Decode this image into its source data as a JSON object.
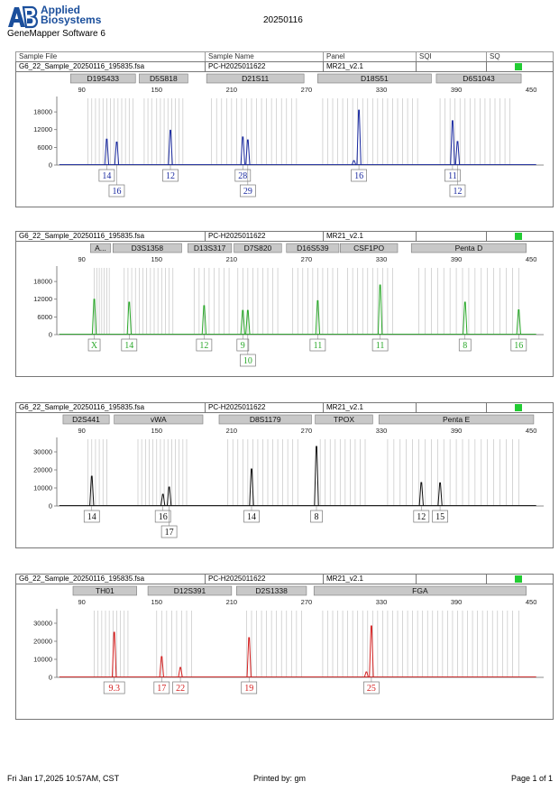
{
  "header": {
    "logo_text_line1": "Applied",
    "logo_text_line2": "Biosystems",
    "software": "GeneMapper Software 6",
    "date": "20250116",
    "brand_color": "#1b4f9c"
  },
  "columns": {
    "sample_file": "Sample File",
    "sample_name": "Sample Name",
    "panel": "Panel",
    "sqi": "SQI",
    "sq": "SQ"
  },
  "x_ticks": [
    90,
    150,
    210,
    270,
    330,
    390,
    450
  ],
  "panels": [
    {
      "sample_file": "G6_22_Sample_20250116_195835.fsa",
      "sample_name": "PC-H2025011622",
      "panel": "MR21_v2.1",
      "color": "#1a2aa0",
      "chart_data": {
        "type": "line",
        "y_ticks": [
          6000,
          12000,
          18000
        ],
        "ymax": 22000,
        "markers": [
          {
            "name": "D19S433",
            "start": 81,
            "end": 133
          },
          {
            "name": "D5S818",
            "start": 136,
            "end": 175
          },
          {
            "name": "D21S11",
            "start": 190,
            "end": 268
          },
          {
            "name": "D18S51",
            "start": 279,
            "end": 370
          },
          {
            "name": "D6S1043",
            "start": 374,
            "end": 442
          }
        ],
        "bins": [
          95,
          98,
          101,
          104,
          107,
          110,
          113,
          116,
          119,
          122,
          125,
          128,
          131,
          140,
          143,
          146,
          150,
          153,
          156,
          159,
          162,
          165,
          168,
          171,
          194,
          198,
          202,
          206,
          210,
          214,
          218,
          222,
          226,
          230,
          234,
          238,
          242,
          246,
          250,
          254,
          258,
          262,
          283,
          287,
          291,
          295,
          299,
          303,
          307,
          311,
          315,
          319,
          323,
          327,
          331,
          335,
          339,
          343,
          347,
          351,
          355,
          359,
          377,
          381,
          385,
          389,
          393,
          397,
          401,
          405,
          409,
          413,
          417,
          421,
          425,
          429,
          433
        ],
        "peaks": [
          {
            "x": 110,
            "height": 8800
          },
          {
            "x": 118,
            "height": 7800
          },
          {
            "x": 161,
            "height": 11800
          },
          {
            "x": 219,
            "height": 9500
          },
          {
            "x": 223,
            "height": 8500
          },
          {
            "x": 308,
            "height": 1500
          },
          {
            "x": 312,
            "height": 18600
          },
          {
            "x": 387,
            "height": 15000
          },
          {
            "x": 391,
            "height": 8000
          }
        ],
        "alleles": [
          {
            "label": "14",
            "x": 110,
            "row": 0
          },
          {
            "label": "16",
            "x": 118,
            "row": 1
          },
          {
            "label": "12",
            "x": 161,
            "row": 0
          },
          {
            "label": "28",
            "x": 219,
            "row": 0
          },
          {
            "label": "29",
            "x": 223,
            "row": 1
          },
          {
            "label": "16",
            "x": 312,
            "row": 0
          },
          {
            "label": "11",
            "x": 387,
            "row": 0
          },
          {
            "label": "12",
            "x": 391,
            "row": 1
          }
        ]
      }
    },
    {
      "sample_file": "G6_22_Sample_20250116_195835.fsa",
      "sample_name": "PC-H2025011622",
      "panel": "MR21_v2.1",
      "color": "#2aa82a",
      "chart_data": {
        "type": "line",
        "y_ticks": [
          6000,
          12000,
          18000
        ],
        "ymax": 22000,
        "markers": [
          {
            "name": "A...",
            "start": 97,
            "end": 113
          },
          {
            "name": "D3S1358",
            "start": 115,
            "end": 170
          },
          {
            "name": "D13S317",
            "start": 175,
            "end": 210
          },
          {
            "name": "D7S820",
            "start": 212,
            "end": 250
          },
          {
            "name": "D16S539",
            "start": 254,
            "end": 296
          },
          {
            "name": "CSF1PO",
            "start": 297,
            "end": 343
          },
          {
            "name": "Penta D",
            "start": 354,
            "end": 446
          }
        ],
        "bins": [
          100,
          102,
          104,
          106,
          108,
          110,
          112,
          124,
          127,
          130,
          133,
          136,
          139,
          142,
          145,
          148,
          151,
          154,
          157,
          160,
          163,
          180,
          184,
          188,
          192,
          196,
          200,
          204,
          208,
          215,
          219,
          223,
          227,
          231,
          235,
          239,
          243,
          247,
          259,
          263,
          267,
          271,
          275,
          279,
          283,
          287,
          291,
          295,
          303,
          307,
          311,
          315,
          319,
          323,
          327,
          331,
          335,
          339,
          360,
          365,
          370,
          375,
          380,
          385,
          390,
          395,
          400,
          405,
          410,
          415,
          420,
          425,
          430,
          435,
          440
        ],
        "peaks": [
          {
            "x": 100,
            "height": 12000
          },
          {
            "x": 128,
            "height": 11000
          },
          {
            "x": 188,
            "height": 9800
          },
          {
            "x": 219,
            "height": 8200
          },
          {
            "x": 223,
            "height": 8200
          },
          {
            "x": 279,
            "height": 11500
          },
          {
            "x": 329,
            "height": 16800
          },
          {
            "x": 397,
            "height": 11000
          },
          {
            "x": 440,
            "height": 8400
          }
        ],
        "alleles": [
          {
            "label": "X",
            "x": 100,
            "row": 0
          },
          {
            "label": "14",
            "x": 128,
            "row": 0
          },
          {
            "label": "12",
            "x": 188,
            "row": 0
          },
          {
            "label": "9",
            "x": 219,
            "row": 0
          },
          {
            "label": "10",
            "x": 223,
            "row": 1
          },
          {
            "label": "11",
            "x": 279,
            "row": 0
          },
          {
            "label": "11",
            "x": 329,
            "row": 0
          },
          {
            "label": "8",
            "x": 397,
            "row": 0
          },
          {
            "label": "16",
            "x": 440,
            "row": 0
          }
        ]
      }
    },
    {
      "sample_file": "G6_22_Sample_20250116_195835.fsa",
      "sample_name": "PC-H2025011622",
      "panel": "MR21_v2.1",
      "color": "#111111",
      "chart_data": {
        "type": "line",
        "y_ticks": [
          10000,
          20000,
          30000
        ],
        "ymax": 36000,
        "markers": [
          {
            "name": "D2S441",
            "start": 75,
            "end": 112
          },
          {
            "name": "vWA",
            "start": 116,
            "end": 187
          },
          {
            "name": "D8S1179",
            "start": 200,
            "end": 274
          },
          {
            "name": "TPOX",
            "start": 277,
            "end": 323
          },
          {
            "name": "Penta E",
            "start": 328,
            "end": 452
          }
        ],
        "bins": [
          95,
          98,
          101,
          104,
          107,
          110,
          135,
          138,
          141,
          144,
          147,
          150,
          153,
          156,
          159,
          162,
          165,
          168,
          171,
          174,
          207,
          211,
          215,
          219,
          223,
          227,
          231,
          235,
          239,
          243,
          247,
          251,
          255,
          259,
          263,
          281,
          285,
          289,
          293,
          297,
          301,
          305,
          309,
          313,
          317,
          335,
          340,
          345,
          350,
          355,
          360,
          365,
          370,
          375,
          380,
          385,
          390,
          395,
          400,
          405,
          410,
          415,
          420,
          425,
          430,
          435,
          440
        ],
        "peaks": [
          {
            "x": 98,
            "height": 16500
          },
          {
            "x": 155,
            "height": 6500
          },
          {
            "x": 160,
            "height": 10500
          },
          {
            "x": 226,
            "height": 20500
          },
          {
            "x": 278,
            "height": 33000
          },
          {
            "x": 362,
            "height": 13000
          },
          {
            "x": 377,
            "height": 12800
          }
        ],
        "alleles": [
          {
            "label": "14",
            "x": 98,
            "row": 0
          },
          {
            "label": "16",
            "x": 155,
            "row": 0
          },
          {
            "label": "17",
            "x": 160,
            "row": 1
          },
          {
            "label": "14",
            "x": 226,
            "row": 0
          },
          {
            "label": "8",
            "x": 278,
            "row": 0
          },
          {
            "label": "12",
            "x": 362,
            "row": 0
          },
          {
            "label": "15",
            "x": 377,
            "row": 0
          }
        ]
      }
    },
    {
      "sample_file": "G6_22_Sample_20250116_195835.fsa",
      "sample_name": "PC-H2025011622",
      "panel": "MR21_v2.1",
      "color": "#d42020",
      "chart_data": {
        "type": "line",
        "y_ticks": [
          10000,
          20000,
          30000
        ],
        "ymax": 36000,
        "markers": [
          {
            "name": "TH01",
            "start": 83,
            "end": 134
          },
          {
            "name": "D12S391",
            "start": 143,
            "end": 210
          },
          {
            "name": "D2S1338",
            "start": 214,
            "end": 270
          },
          {
            "name": "FGA",
            "start": 276,
            "end": 446
          }
        ],
        "bins": [
          100,
          103,
          106,
          109,
          112,
          115,
          118,
          121,
          124,
          127,
          150,
          154,
          158,
          162,
          166,
          170,
          174,
          178,
          222,
          226,
          230,
          234,
          238,
          242,
          246,
          250,
          254,
          258,
          262,
          266,
          283,
          287,
          291,
          295,
          299,
          303,
          307,
          311,
          315,
          319,
          323,
          327,
          331,
          335,
          339,
          343,
          347,
          351,
          355,
          359,
          363,
          367,
          371,
          375,
          379,
          383,
          387,
          391,
          395,
          399,
          403,
          407,
          411,
          415,
          419,
          423,
          427,
          431,
          435,
          440
        ],
        "peaks": [
          {
            "x": 116,
            "height": 25000
          },
          {
            "x": 154,
            "height": 11500
          },
          {
            "x": 169,
            "height": 5500
          },
          {
            "x": 224,
            "height": 22000
          },
          {
            "x": 318,
            "height": 3000
          },
          {
            "x": 322,
            "height": 28500
          }
        ],
        "alleles": [
          {
            "label": "9.3",
            "x": 116,
            "row": 0
          },
          {
            "label": "17",
            "x": 154,
            "row": 0
          },
          {
            "label": "22",
            "x": 169,
            "row": 0
          },
          {
            "label": "19",
            "x": 224,
            "row": 0
          },
          {
            "label": "25",
            "x": 322,
            "row": 0
          }
        ]
      }
    }
  ],
  "footer": {
    "timestamp": "Fri Jan 17,2025 10:57AM, CST",
    "printed_by": "Printed by: gm",
    "page": "Page 1 of 1"
  }
}
